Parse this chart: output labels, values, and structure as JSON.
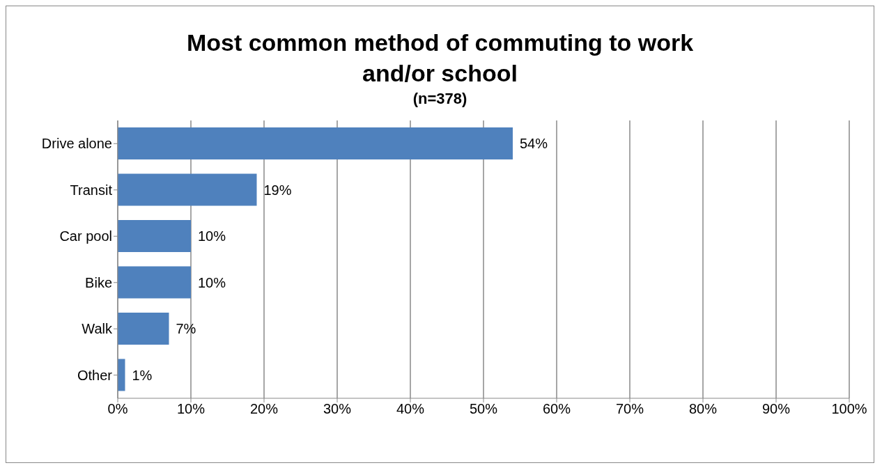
{
  "chart_data": {
    "type": "bar",
    "orientation": "horizontal",
    "title": "Most common method of commuting to work and/or school",
    "subtitle": "(n=378)",
    "categories": [
      "Drive alone",
      "Transit",
      "Car pool",
      "Bike",
      "Walk",
      "Other"
    ],
    "values": [
      54,
      19,
      10,
      10,
      7,
      1
    ],
    "value_labels": [
      "54%",
      "19%",
      "10%",
      "10%",
      "7%",
      "1%"
    ],
    "color": "#4f81bd",
    "xlim": [
      0,
      100
    ],
    "xticks": [
      {
        "value": 0,
        "label": "0%"
      },
      {
        "value": 10,
        "label": "10%"
      },
      {
        "value": 20,
        "label": "20%"
      },
      {
        "value": 30,
        "label": "30%"
      },
      {
        "value": 40,
        "label": "40%"
      },
      {
        "value": 50,
        "label": "50%"
      },
      {
        "value": 60,
        "label": "60%"
      },
      {
        "value": 70,
        "label": "70%"
      },
      {
        "value": 80,
        "label": "80%"
      },
      {
        "value": 90,
        "label": "90%"
      },
      {
        "value": 100,
        "label": "100%"
      }
    ],
    "grid": "x"
  }
}
